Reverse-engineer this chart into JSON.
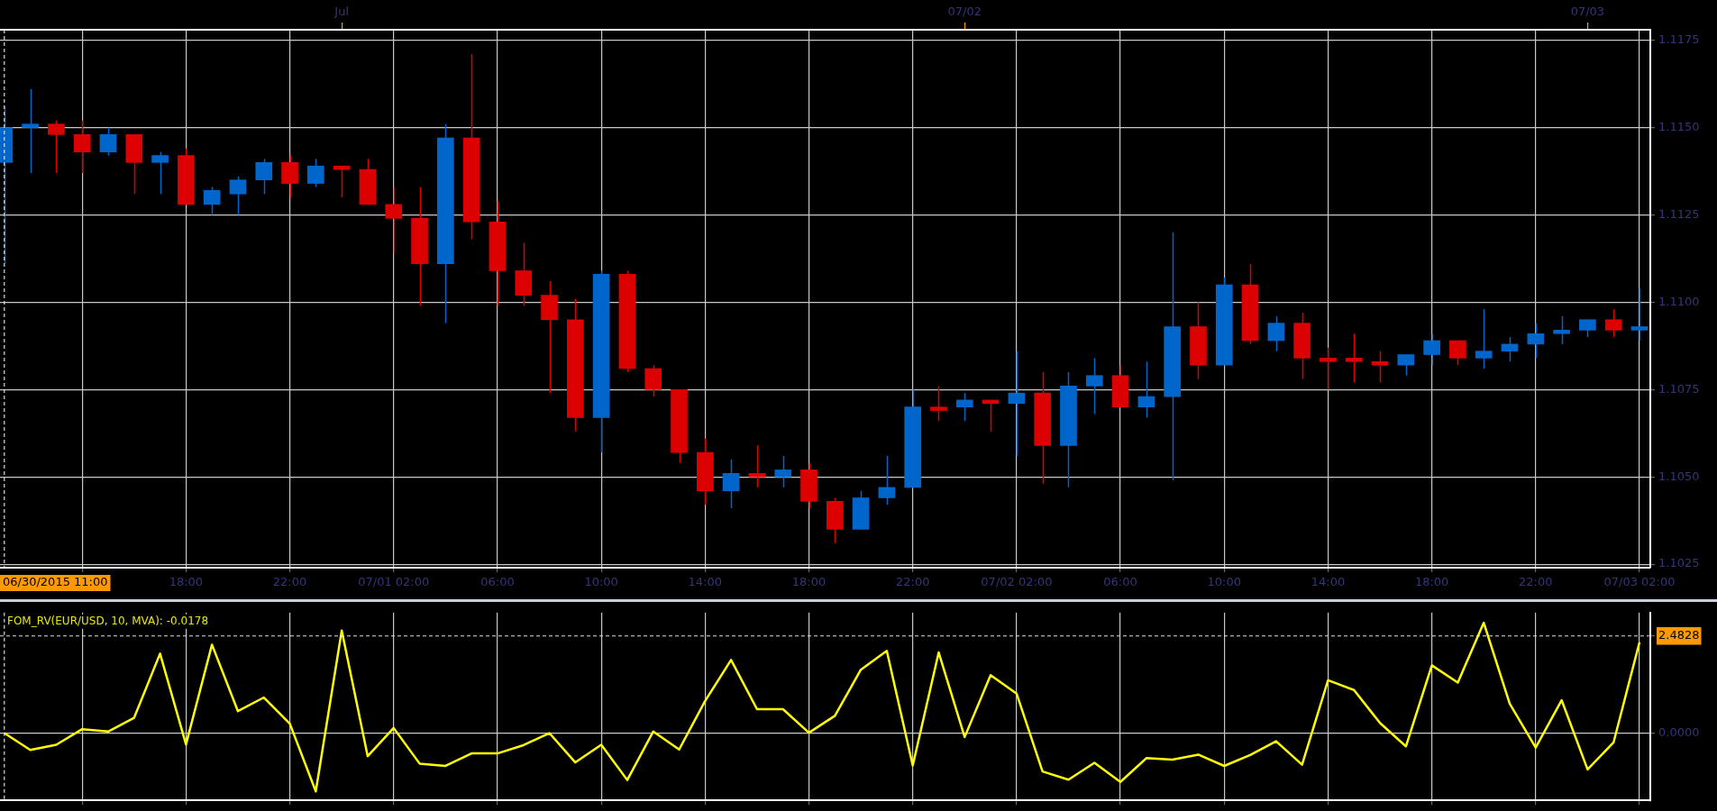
{
  "chart_data": [
    {
      "type": "candlestick",
      "x": [
        "2015-06-30T11:00",
        "2015-06-30T12:00",
        "2015-06-30T13:00",
        "2015-06-30T14:00",
        "2015-06-30T15:00",
        "2015-06-30T16:00",
        "2015-06-30T17:00",
        "2015-06-30T18:00",
        "2015-06-30T19:00",
        "2015-06-30T20:00",
        "2015-06-30T21:00",
        "2015-06-30T22:00",
        "2015-06-30T23:00",
        "2015-07-01T00:00",
        "2015-07-01T01:00",
        "2015-07-01T02:00",
        "2015-07-01T03:00",
        "2015-07-01T04:00",
        "2015-07-01T05:00",
        "2015-07-01T06:00",
        "2015-07-01T07:00",
        "2015-07-01T08:00",
        "2015-07-01T09:00",
        "2015-07-01T10:00",
        "2015-07-01T11:00",
        "2015-07-01T12:00",
        "2015-07-01T13:00",
        "2015-07-01T14:00",
        "2015-07-01T15:00",
        "2015-07-01T16:00",
        "2015-07-01T17:00",
        "2015-07-01T18:00",
        "2015-07-01T19:00",
        "2015-07-01T20:00",
        "2015-07-01T21:00",
        "2015-07-01T22:00",
        "2015-07-01T23:00",
        "2015-07-02T00:00",
        "2015-07-02T01:00",
        "2015-07-02T02:00",
        "2015-07-02T03:00",
        "2015-07-02T04:00",
        "2015-07-02T05:00",
        "2015-07-02T06:00",
        "2015-07-02T07:00",
        "2015-07-02T08:00",
        "2015-07-02T09:00",
        "2015-07-02T10:00",
        "2015-07-02T11:00",
        "2015-07-02T12:00",
        "2015-07-02T13:00",
        "2015-07-02T14:00",
        "2015-07-02T15:00",
        "2015-07-02T16:00",
        "2015-07-02T17:00",
        "2015-07-02T18:00",
        "2015-07-02T19:00",
        "2015-07-02T20:00",
        "2015-07-02T21:00",
        "2015-07-02T22:00",
        "2015-07-02T23:00",
        "2015-07-03T00:00",
        "2015-07-03T01:00",
        "2015-07-03T02:00"
      ],
      "ohlc": [
        [
          1.114,
          1.1156,
          1.1111,
          1.115
        ],
        [
          1.115,
          1.1161,
          1.1137,
          1.1151
        ],
        [
          1.1151,
          1.1152,
          1.1137,
          1.1148
        ],
        [
          1.1148,
          1.1152,
          1.1137,
          1.1143
        ],
        [
          1.1143,
          1.115,
          1.1142,
          1.1148
        ],
        [
          1.1148,
          1.1148,
          1.1131,
          1.114
        ],
        [
          1.114,
          1.1143,
          1.1131,
          1.1142
        ],
        [
          1.1142,
          1.1144,
          1.1128,
          1.1128
        ],
        [
          1.1128,
          1.1133,
          1.1125,
          1.1132
        ],
        [
          1.1131,
          1.1136,
          1.1125,
          1.1135
        ],
        [
          1.1135,
          1.1141,
          1.1131,
          1.114
        ],
        [
          1.114,
          1.1142,
          1.113,
          1.1134
        ],
        [
          1.1134,
          1.1141,
          1.1133,
          1.1139
        ],
        [
          1.1139,
          1.1139,
          1.113,
          1.1138
        ],
        [
          1.1138,
          1.1141,
          1.1128,
          1.1128
        ],
        [
          1.1128,
          1.1133,
          1.1114,
          1.1124
        ],
        [
          1.1124,
          1.1133,
          1.1099,
          1.1111
        ],
        [
          1.1111,
          1.1151,
          1.1094,
          1.1147
        ],
        [
          1.1147,
          1.1171,
          1.1118,
          1.1123
        ],
        [
          1.1123,
          1.1129,
          1.1099,
          1.1109
        ],
        [
          1.1109,
          1.1117,
          1.1099,
          1.1102
        ],
        [
          1.1102,
          1.1106,
          1.1074,
          1.1095
        ],
        [
          1.1095,
          1.1101,
          1.1063,
          1.1067
        ],
        [
          1.1067,
          1.1109,
          1.1057,
          1.1108
        ],
        [
          1.1108,
          1.1109,
          1.108,
          1.1081
        ],
        [
          1.1081,
          1.1082,
          1.1073,
          1.1075
        ],
        [
          1.1075,
          1.1075,
          1.1054,
          1.1057
        ],
        [
          1.1057,
          1.1061,
          1.1042,
          1.1046
        ],
        [
          1.1046,
          1.1055,
          1.1041,
          1.1051
        ],
        [
          1.1051,
          1.1059,
          1.1047,
          1.105
        ],
        [
          1.105,
          1.1056,
          1.1047,
          1.1052
        ],
        [
          1.1052,
          1.1054,
          1.1041,
          1.1043
        ],
        [
          1.1043,
          1.1044,
          1.1031,
          1.1035
        ],
        [
          1.1035,
          1.1046,
          1.1035,
          1.1044
        ],
        [
          1.1044,
          1.1056,
          1.1042,
          1.1047
        ],
        [
          1.1047,
          1.1075,
          1.1047,
          1.107
        ],
        [
          1.107,
          1.1076,
          1.1066,
          1.1069
        ],
        [
          1.107,
          1.1074,
          1.1066,
          1.1072
        ],
        [
          1.1072,
          1.1072,
          1.1063,
          1.1071
        ],
        [
          1.1071,
          1.1086,
          1.1056,
          1.1074
        ],
        [
          1.1074,
          1.108,
          1.1048,
          1.1059
        ],
        [
          1.1059,
          1.108,
          1.1047,
          1.1076
        ],
        [
          1.1076,
          1.1084,
          1.1068,
          1.1079
        ],
        [
          1.1079,
          1.1082,
          1.107,
          1.107
        ],
        [
          1.107,
          1.1083,
          1.1067,
          1.1073
        ],
        [
          1.1073,
          1.112,
          1.1049,
          1.1093
        ],
        [
          1.1093,
          1.11,
          1.1078,
          1.1082
        ],
        [
          1.1082,
          1.1107,
          1.1082,
          1.1105
        ],
        [
          1.1105,
          1.1111,
          1.1088,
          1.1089
        ],
        [
          1.1089,
          1.1096,
          1.1086,
          1.1094
        ],
        [
          1.1094,
          1.1097,
          1.1078,
          1.1084
        ],
        [
          1.1084,
          1.1087,
          1.1075,
          1.1083
        ],
        [
          1.1084,
          1.1091,
          1.1077,
          1.1083
        ],
        [
          1.1083,
          1.1086,
          1.1077,
          1.1082
        ],
        [
          1.1082,
          1.1085,
          1.1079,
          1.1085
        ],
        [
          1.1085,
          1.1091,
          1.1082,
          1.1089
        ],
        [
          1.1089,
          1.1089,
          1.1082,
          1.1084
        ],
        [
          1.1084,
          1.1098,
          1.1081,
          1.1086
        ],
        [
          1.1086,
          1.109,
          1.1083,
          1.1088
        ],
        [
          1.1088,
          1.1094,
          1.1084,
          1.1091
        ],
        [
          1.1091,
          1.1096,
          1.1088,
          1.1092
        ],
        [
          1.1092,
          1.1095,
          1.109,
          1.1095
        ],
        [
          1.1095,
          1.1098,
          1.109,
          1.1092
        ],
        [
          1.1092,
          1.1104,
          1.1089,
          1.1093
        ]
      ],
      "colors": [
        "#0066cc",
        "#0066cc",
        "#dd0000",
        "#dd0000",
        "#0066cc",
        "#dd0000",
        "#0066cc",
        "#dd0000",
        "#0066cc",
        "#0066cc",
        "#0066cc",
        "#dd0000",
        "#0066cc",
        "#dd0000",
        "#dd0000",
        "#dd0000",
        "#dd0000",
        "#0066cc",
        "#dd0000",
        "#dd0000",
        "#dd0000",
        "#dd0000",
        "#dd0000",
        "#0066cc",
        "#dd0000",
        "#dd0000",
        "#dd0000",
        "#dd0000",
        "#0066cc",
        "#dd0000",
        "#0066cc",
        "#dd0000",
        "#dd0000",
        "#0066cc",
        "#0066cc",
        "#0066cc",
        "#dd0000",
        "#0066cc",
        "#dd0000",
        "#0066cc",
        "#dd0000",
        "#0066cc",
        "#0066cc",
        "#dd0000",
        "#0066cc",
        "#0066cc",
        "#dd0000",
        "#0066cc",
        "#dd0000",
        "#0066cc",
        "#dd0000",
        "#dd0000",
        "#dd0000",
        "#dd0000",
        "#0066cc",
        "#0066cc",
        "#dd0000",
        "#0066cc",
        "#0066cc",
        "#0066cc",
        "#0066cc",
        "#0066cc",
        "#dd0000",
        "#0066cc"
      ],
      "xlim": [
        "2015-06-30T10:50",
        "2015-07-03T02:25"
      ],
      "xticks": [
        {
          "value": "2015-06-30T14:00",
          "label": null
        },
        {
          "value": "2015-06-30T18:00",
          "label": "18:00"
        },
        {
          "value": "2015-06-30T22:00",
          "label": "22:00"
        },
        {
          "value": "2015-07-01T02:00",
          "label": "07/01 02:00"
        },
        {
          "value": "2015-07-01T06:00",
          "label": "06:00"
        },
        {
          "value": "2015-07-01T10:00",
          "label": "10:00"
        },
        {
          "value": "2015-07-01T14:00",
          "label": "14:00"
        },
        {
          "value": "2015-07-01T18:00",
          "label": "18:00"
        },
        {
          "value": "2015-07-01T22:00",
          "label": "22:00"
        },
        {
          "value": "2015-07-02T02:00",
          "label": "07/02 02:00"
        },
        {
          "value": "2015-07-02T06:00",
          "label": "06:00"
        },
        {
          "value": "2015-07-02T10:00",
          "label": "10:00"
        },
        {
          "value": "2015-07-02T14:00",
          "label": "14:00"
        },
        {
          "value": "2015-07-02T18:00",
          "label": "18:00"
        },
        {
          "value": "2015-07-02T22:00",
          "label": "22:00"
        },
        {
          "value": "2015-07-03T02:00",
          "label": "07/03 02:00"
        }
      ],
      "x2lim": [
        "2015-06-30T10:50",
        "2015-07-03T02:25"
      ],
      "x2ticks": [
        {
          "value": "2015-07-01T00:00",
          "label": "Jul"
        },
        {
          "value": "2015-07-02T00:00",
          "label": "07/02"
        },
        {
          "value": "2015-07-03T00:00",
          "label": "07/03"
        }
      ],
      "ylim": [
        1.1024,
        1.1178
      ],
      "yticks": [
        1.1025,
        {
          "value": 1.105,
          "label": "1.1050"
        },
        1.1075,
        {
          "value": 1.11,
          "label": "1.1100"
        },
        1.1125,
        {
          "value": 1.115,
          "label": "1.1150"
        },
        1.1175
      ],
      "grid": true,
      "ref_lines": [
        {
          "axis": "x",
          "value": "2015-06-30T11:00",
          "label": "06/30/2015 11:00",
          "line_style": "dashed"
        }
      ]
    },
    {
      "type": "line",
      "title": "FOM_RV(EUR/USD, 10, MVA): -0.0178",
      "x": [
        "2015-06-30T11:00",
        "2015-06-30T12:00",
        "2015-06-30T13:00",
        "2015-06-30T14:00",
        "2015-06-30T15:00",
        "2015-06-30T16:00",
        "2015-06-30T17:00",
        "2015-06-30T18:00",
        "2015-06-30T19:00",
        "2015-06-30T20:00",
        "2015-06-30T21:00",
        "2015-06-30T22:00",
        "2015-06-30T23:00",
        "2015-07-01T00:00",
        "2015-07-01T01:00",
        "2015-07-01T02:00",
        "2015-07-01T03:00",
        "2015-07-01T04:00",
        "2015-07-01T05:00",
        "2015-07-01T06:00",
        "2015-07-01T07:00",
        "2015-07-01T08:00",
        "2015-07-01T09:00",
        "2015-07-01T10:00",
        "2015-07-01T11:00",
        "2015-07-01T12:00",
        "2015-07-01T13:00",
        "2015-07-01T14:00",
        "2015-07-01T15:00",
        "2015-07-01T16:00",
        "2015-07-01T17:00",
        "2015-07-01T18:00",
        "2015-07-01T19:00",
        "2015-07-01T20:00",
        "2015-07-01T21:00",
        "2015-07-01T22:00",
        "2015-07-01T23:00",
        "2015-07-02T00:00",
        "2015-07-02T01:00",
        "2015-07-02T02:00",
        "2015-07-02T03:00",
        "2015-07-02T04:00",
        "2015-07-02T05:00",
        "2015-07-02T06:00",
        "2015-07-02T07:00",
        "2015-07-02T08:00",
        "2015-07-02T09:00",
        "2015-07-02T10:00",
        "2015-07-02T11:00",
        "2015-07-02T12:00",
        "2015-07-02T13:00",
        "2015-07-02T14:00",
        "2015-07-02T15:00",
        "2015-07-02T16:00",
        "2015-07-02T17:00",
        "2015-07-02T18:00",
        "2015-07-02T19:00",
        "2015-07-02T20:00",
        "2015-07-02T21:00",
        "2015-07-02T22:00",
        "2015-07-02T23:00",
        "2015-07-03T00:00",
        "2015-07-03T01:00",
        "2015-07-03T02:00"
      ],
      "series": [
        {
          "color": "#ffff00",
          "values": [
            0,
            -0.43,
            -0.3,
            0.1,
            0.04,
            0.39,
            2.03,
            -0.29,
            2.26,
            0.56,
            0.91,
            0.24,
            -1.49,
            2.62,
            -0.59,
            0.13,
            -0.78,
            -0.84,
            -0.52,
            -0.52,
            -0.31,
            0,
            -0.75,
            -0.3,
            -1.2,
            0.04,
            -0.42,
            0.82,
            1.87,
            0.61,
            0.61,
            0.01,
            0.44,
            1.62,
            2.1,
            -0.83,
            2.06,
            -0.1,
            1.48,
            1.01,
            -0.98,
            -1.19,
            -0.76,
            -1.25,
            -0.64,
            -0.68,
            -0.55,
            -0.84,
            -0.56,
            -0.21,
            -0.81,
            1.35,
            1.1,
            0.26,
            -0.34,
            1.73,
            1.29,
            2.82,
            0.75,
            -0.37,
            0.84,
            -0.93,
            -0.24,
            2.32
          ]
        }
      ],
      "xlim": [
        "2015-06-30T10:50",
        "2015-07-03T02:25"
      ],
      "xticks": [
        "2015-06-30T14:00",
        "2015-06-30T18:00",
        "2015-06-30T22:00",
        "2015-07-01T02:00",
        "2015-07-01T06:00",
        "2015-07-01T10:00",
        "2015-07-01T14:00",
        "2015-07-01T18:00",
        "2015-07-01T22:00",
        "2015-07-02T02:00",
        "2015-07-02T06:00",
        "2015-07-02T10:00",
        "2015-07-02T14:00",
        "2015-07-02T18:00",
        "2015-07-02T22:00",
        "2015-07-03T02:00"
      ],
      "ylim": [
        -1.72,
        3.08
      ],
      "yticks": [
        {
          "value": 0,
          "label": "0.0000"
        },
        {
          "value": 2.4828,
          "label": "2.4828"
        }
      ],
      "tick_labels": "y",
      "grid": true,
      "ref_lines": [
        {
          "axis": "x",
          "value": "2015-06-30T11:00",
          "line_style": "dashed"
        },
        {
          "axis": "y",
          "value": 2.4828,
          "line_style": "dashed"
        }
      ]
    }
  ]
}
